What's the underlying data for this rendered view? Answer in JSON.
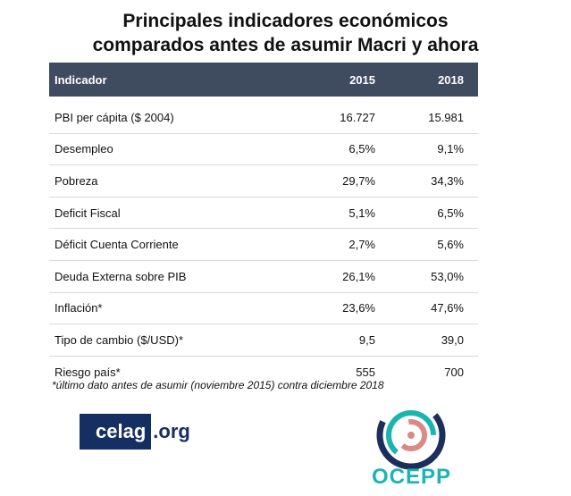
{
  "title_line1": "Principales indicadores económicos",
  "title_line2": "comparados antes de asumir Macri y ahora",
  "table": {
    "headers": [
      "Indicador",
      "2015",
      "2018"
    ],
    "rows": [
      [
        "PBI per cápita ($ 2004)",
        "16.727",
        "15.981"
      ],
      [
        "Desempleo",
        "6,5%",
        "9,1%"
      ],
      [
        "Pobreza",
        "29,7%",
        "34,3%"
      ],
      [
        "Deficit Fiscal",
        "5,1%",
        "6,5%"
      ],
      [
        "Déficit Cuenta Corriente",
        "2,7%",
        "5,6%"
      ],
      [
        "Deuda Externa sobre PIB",
        "26,1%",
        "53,0%"
      ],
      [
        "Inflación*",
        "23,6%",
        "47,6%"
      ],
      [
        "Tipo de cambio ($/USD)*",
        "9,5",
        "39,0"
      ],
      [
        "Riesgo país*",
        "555",
        "700"
      ]
    ],
    "header_color": "#3f4b5e"
  },
  "footnote": "*último dato antes de asumir (noviembre 2015)  contra diciembre 2018",
  "logos": {
    "celag_main": "celag",
    "celag_suffix": ".org",
    "celag_color": "#162f63",
    "ocepp": "OCEPP",
    "ocepp_color": "#1bb5b1"
  }
}
